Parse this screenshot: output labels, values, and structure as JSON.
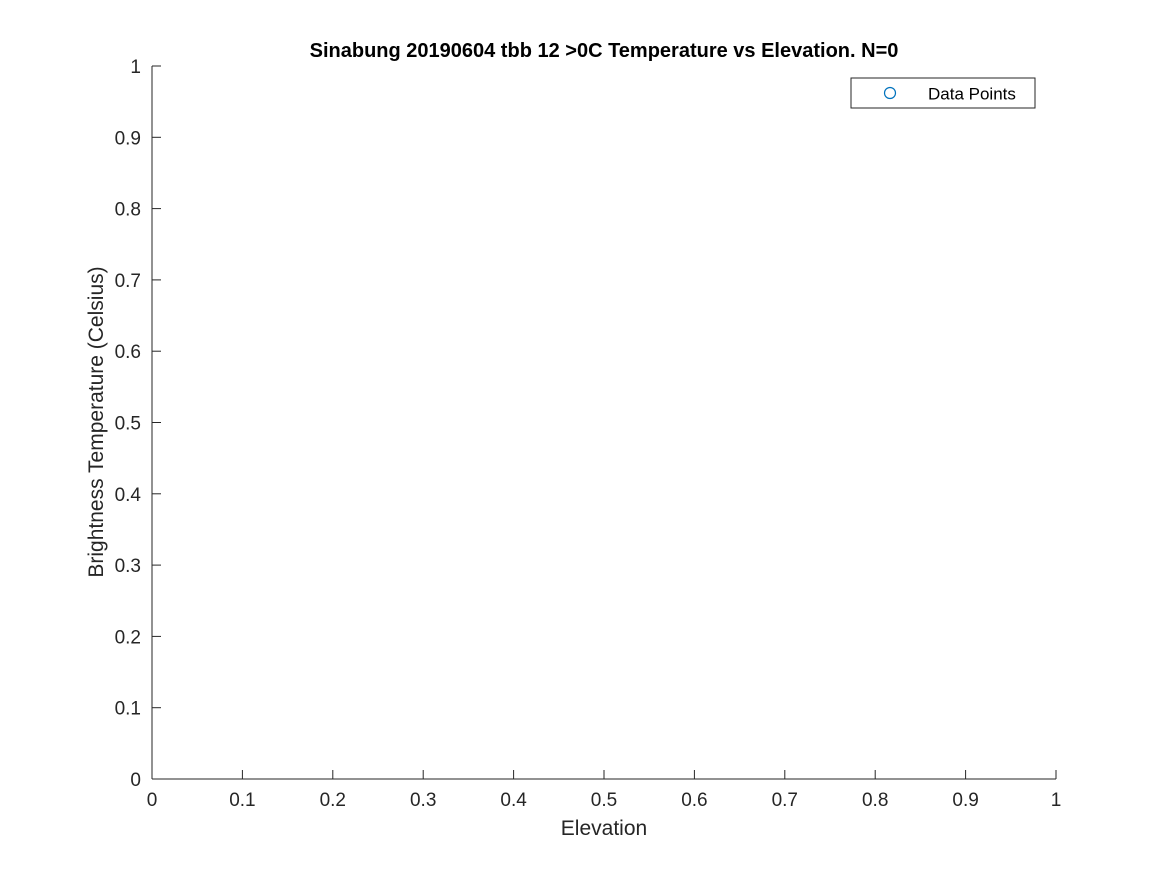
{
  "chart_data": {
    "type": "scatter",
    "title": "Sinabung 20190604 tbb 12 >0C Temperature vs Elevation. N=0",
    "xlabel": "Elevation",
    "ylabel": "Brightness Temperature (Celsius)",
    "xlim": [
      0,
      1
    ],
    "ylim": [
      0,
      1
    ],
    "xticks": [
      "0",
      "0.1",
      "0.2",
      "0.3",
      "0.4",
      "0.5",
      "0.6",
      "0.7",
      "0.8",
      "0.9",
      "1"
    ],
    "yticks": [
      "0",
      "0.1",
      "0.2",
      "0.3",
      "0.4",
      "0.5",
      "0.6",
      "0.7",
      "0.8",
      "0.9",
      "1"
    ],
    "series": [
      {
        "name": "Data Points",
        "marker": "circle",
        "color": "#0072BD",
        "x": [],
        "y": []
      }
    ],
    "grid": false,
    "legend_position": "top-right"
  }
}
